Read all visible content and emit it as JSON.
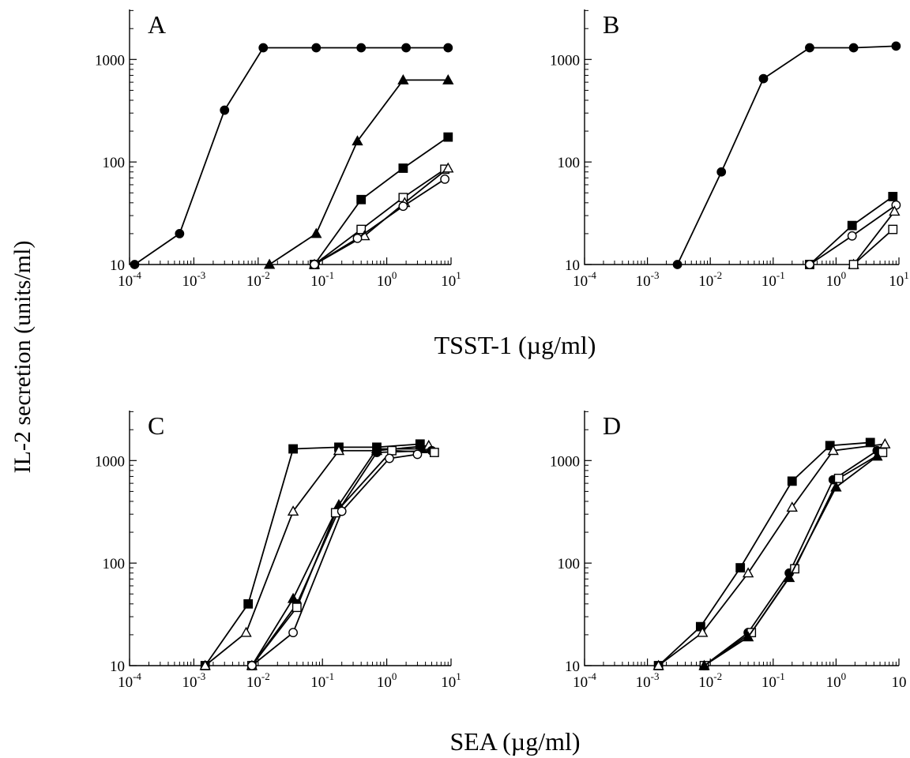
{
  "figure": {
    "ylabel": "IL-2 secretion (units/ml)",
    "xlabel_top": "TSST-1 (µg/ml)",
    "xlabel_bottom": "SEA (µg/ml)"
  },
  "chart_data": [
    {
      "type": "line",
      "panel_label": "A",
      "x_scale": "log",
      "y_scale": "log",
      "xlim": [
        0.0001,
        10
      ],
      "ylim": [
        10,
        3000
      ],
      "x_tick_labels": [
        "10^-4",
        "10^-3",
        "10^-2",
        "10^-1",
        "10^0",
        "10^1"
      ],
      "y_tick_labels": [
        "10",
        "100",
        "1000"
      ],
      "series": [
        {
          "marker": "filled-circle",
          "x": [
            0.00012,
            0.0006,
            0.003,
            0.012,
            0.08,
            0.4,
            2,
            9
          ],
          "y": [
            10,
            20,
            320,
            1300,
            1300,
            1300,
            1300,
            1300
          ]
        },
        {
          "marker": "filled-triangle",
          "x": [
            0.015,
            0.08,
            0.35,
            1.8,
            9
          ],
          "y": [
            10,
            20,
            160,
            630,
            630
          ]
        },
        {
          "marker": "filled-square",
          "x": [
            0.075,
            0.4,
            1.8,
            9
          ],
          "y": [
            10,
            43,
            87,
            175
          ]
        },
        {
          "marker": "open-square",
          "x": [
            0.075,
            0.4,
            1.8,
            8
          ],
          "y": [
            10,
            22,
            45,
            85
          ]
        },
        {
          "marker": "open-triangle",
          "x": [
            0.075,
            0.45,
            1.9,
            9
          ],
          "y": [
            10,
            19,
            40,
            87
          ]
        },
        {
          "marker": "open-circle",
          "x": [
            0.075,
            0.35,
            1.8,
            8
          ],
          "y": [
            10,
            18,
            37,
            68
          ]
        }
      ]
    },
    {
      "type": "line",
      "panel_label": "B",
      "x_scale": "log",
      "y_scale": "log",
      "xlim": [
        0.0001,
        10
      ],
      "ylim": [
        10,
        3000
      ],
      "x_tick_labels": [
        "10^-4",
        "10^-3",
        "10^-2",
        "10^-1",
        "10^0",
        "10^1"
      ],
      "y_tick_labels": [
        "10",
        "100",
        "1000"
      ],
      "series": [
        {
          "marker": "filled-circle",
          "x": [
            0.003,
            0.015,
            0.07,
            0.38,
            1.9,
            9
          ],
          "y": [
            10,
            80,
            650,
            1300,
            1300,
            1350
          ]
        },
        {
          "marker": "filled-square",
          "x": [
            0.38,
            1.8,
            8
          ],
          "y": [
            10,
            24,
            46
          ]
        },
        {
          "marker": "open-circle",
          "x": [
            0.38,
            1.8,
            9
          ],
          "y": [
            10,
            19,
            38
          ]
        },
        {
          "marker": "open-triangle",
          "x": [
            1.9,
            8.5
          ],
          "y": [
            10,
            33
          ]
        },
        {
          "marker": "open-square",
          "x": [
            1.9,
            8
          ],
          "y": [
            10,
            22
          ]
        }
      ]
    },
    {
      "type": "line",
      "panel_label": "C",
      "x_scale": "log",
      "y_scale": "log",
      "xlim": [
        0.0001,
        10
      ],
      "ylim": [
        10,
        3000
      ],
      "x_tick_labels": [
        "10^-4",
        "10^-3",
        "10^-2",
        "10^-1",
        "10^0",
        "10^1"
      ],
      "y_tick_labels": [
        "10",
        "100",
        "1000"
      ],
      "series": [
        {
          "marker": "filled-square",
          "x": [
            0.0015,
            0.007,
            0.035,
            0.18,
            0.7,
            3.3
          ],
          "y": [
            10,
            40,
            1300,
            1350,
            1350,
            1450
          ]
        },
        {
          "marker": "open-triangle",
          "x": [
            0.0015,
            0.0065,
            0.035,
            0.18,
            0.7,
            4.5
          ],
          "y": [
            10,
            21,
            320,
            1250,
            1250,
            1400
          ]
        },
        {
          "marker": "filled-triangle",
          "x": [
            0.008,
            0.035,
            0.18,
            0.7,
            3.5
          ],
          "y": [
            10,
            45,
            370,
            1300,
            1300
          ]
        },
        {
          "marker": "filled-circle",
          "x": [
            0.008,
            0.04,
            0.18,
            0.7,
            5.0
          ],
          "y": [
            10,
            40,
            330,
            1200,
            1250
          ]
        },
        {
          "marker": "open-square",
          "x": [
            0.008,
            0.04,
            0.16,
            1.2,
            5.5
          ],
          "y": [
            10,
            37,
            310,
            1250,
            1200
          ]
        },
        {
          "marker": "open-circle",
          "x": [
            0.008,
            0.035,
            0.2,
            1.1,
            3.0
          ],
          "y": [
            10,
            21,
            320,
            1050,
            1150
          ]
        }
      ]
    },
    {
      "type": "line",
      "panel_label": "D",
      "x_scale": "log",
      "y_scale": "log",
      "xlim": [
        0.0001,
        10
      ],
      "ylim": [
        10,
        3000
      ],
      "x_tick_labels": [
        "10^-4",
        "10^-3",
        "10^-2",
        "10^-1",
        "10^0",
        "10"
      ],
      "y_tick_labels": [
        "10",
        "100",
        "1000"
      ],
      "series": [
        {
          "marker": "filled-square",
          "x": [
            0.0015,
            0.007,
            0.03,
            0.2,
            0.8,
            3.5
          ],
          "y": [
            10,
            24,
            90,
            630,
            1400,
            1500
          ]
        },
        {
          "marker": "open-triangle",
          "x": [
            0.0015,
            0.0075,
            0.04,
            0.2,
            0.9,
            6.0
          ],
          "y": [
            10,
            21,
            80,
            350,
            1250,
            1450
          ]
        },
        {
          "marker": "filled-circle",
          "x": [
            0.008,
            0.04,
            0.18,
            0.9,
            4.5
          ],
          "y": [
            10,
            21,
            80,
            650,
            1250
          ]
        },
        {
          "marker": "open-square",
          "x": [
            0.008,
            0.045,
            0.22,
            1.1,
            5.5
          ],
          "y": [
            10,
            21,
            88,
            670,
            1200
          ]
        },
        {
          "marker": "filled-triangle",
          "x": [
            0.008,
            0.04,
            0.18,
            1.0,
            4.5
          ],
          "y": [
            10,
            19,
            72,
            550,
            1100
          ]
        }
      ]
    }
  ]
}
